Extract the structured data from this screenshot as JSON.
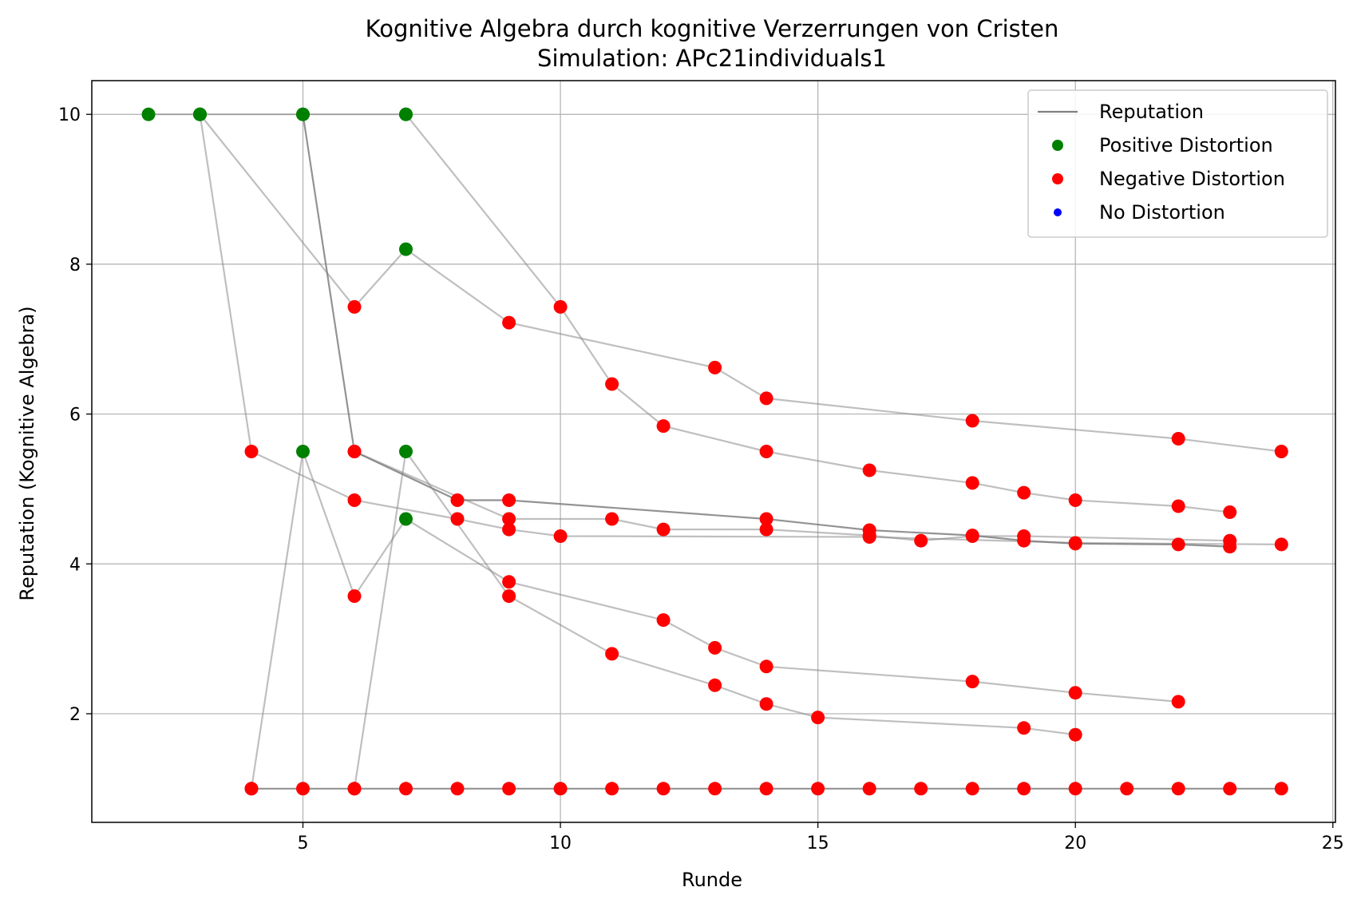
{
  "chart_data": {
    "type": "line",
    "title": "Kognitive Algebra durch kognitive Verzerrungen von Cristen",
    "subtitle": "Simulation: APc21individuals1",
    "xlabel": "Runde",
    "ylabel": "Reputation (Kognitive Algebra)",
    "xlim": [
      0.9,
      25.05
    ],
    "ylim": [
      0.55,
      10.45
    ],
    "xticks": [
      5,
      10,
      15,
      20,
      25
    ],
    "yticks": [
      2,
      4,
      6,
      8,
      10
    ],
    "grid": true,
    "legend_position": "top-right",
    "legend": [
      {
        "label": "Reputation",
        "kind": "line",
        "color": "#808080"
      },
      {
        "label": "Positive Distortion",
        "kind": "marker",
        "color": "#008000"
      },
      {
        "label": "Negative Distortion",
        "kind": "marker",
        "color": "#ff0000"
      },
      {
        "label": "No Distortion",
        "kind": "marker",
        "color": "#0000ff"
      }
    ],
    "colors": {
      "line": "#808080",
      "positive": "#008000",
      "negative": "#ff0000",
      "none": "#0000ff",
      "grid": "#b0b0b0"
    },
    "series": [
      {
        "points": [
          [
            2,
            10
          ],
          [
            3,
            10
          ],
          [
            5,
            10
          ],
          [
            7,
            10
          ]
        ],
        "dist": [
          "positive",
          "positive",
          "positive",
          "positive"
        ],
        "alpha": 0.5
      },
      {
        "points": [
          [
            3,
            10
          ],
          [
            6,
            7.43
          ],
          [
            7,
            8.2
          ],
          [
            9,
            7.22
          ],
          [
            13,
            6.62
          ],
          [
            14,
            6.21
          ],
          [
            18,
            5.91
          ],
          [
            22,
            5.67
          ],
          [
            24,
            5.5
          ]
        ],
        "dist": [
          "positive",
          "negative",
          "positive",
          "negative",
          "negative",
          "negative",
          "negative",
          "negative",
          "negative"
        ],
        "alpha": 0.5
      },
      {
        "points": [
          [
            7,
            10
          ],
          [
            10,
            7.43
          ],
          [
            11,
            6.4
          ],
          [
            12,
            5.84
          ],
          [
            14,
            5.5
          ],
          [
            16,
            5.25
          ],
          [
            18,
            5.08
          ],
          [
            19,
            4.95
          ],
          [
            20,
            4.85
          ],
          [
            22,
            4.77
          ],
          [
            23,
            4.69
          ]
        ],
        "dist": [
          "positive",
          "negative",
          "negative",
          "negative",
          "negative",
          "negative",
          "negative",
          "negative",
          "negative",
          "negative",
          "negative"
        ],
        "alpha": 0.5
      },
      {
        "points": [
          [
            5,
            10
          ],
          [
            6,
            5.5
          ],
          [
            8,
            4.85
          ],
          [
            9,
            4.85
          ],
          [
            14,
            4.6
          ],
          [
            16,
            4.45
          ],
          [
            18,
            4.38
          ],
          [
            19,
            4.31
          ],
          [
            20,
            4.27
          ],
          [
            22,
            4.26
          ],
          [
            23,
            4.23
          ]
        ],
        "dist": [
          "positive",
          "negative",
          "negative",
          "negative",
          "negative",
          "negative",
          "negative",
          "negative",
          "negative",
          "negative",
          "negative"
        ],
        "alpha": 0.85
      },
      {
        "points": [
          [
            3,
            10
          ],
          [
            4,
            5.5
          ],
          [
            6,
            4.85
          ],
          [
            8,
            4.6
          ],
          [
            9,
            4.46
          ],
          [
            10,
            4.37
          ],
          [
            16,
            4.36
          ],
          [
            20,
            4.28
          ],
          [
            24,
            4.26
          ]
        ],
        "dist": [
          "positive",
          "negative",
          "negative",
          "negative",
          "negative",
          "negative",
          "negative",
          "negative",
          "negative"
        ],
        "alpha": 0.5
      },
      {
        "points": [
          [
            6,
            5.5
          ],
          [
            9,
            4.6
          ],
          [
            11,
            4.6
          ],
          [
            12,
            4.46
          ],
          [
            14,
            4.46
          ],
          [
            16,
            4.38
          ],
          [
            17,
            4.31
          ],
          [
            18,
            4.37
          ],
          [
            19,
            4.37
          ],
          [
            23,
            4.31
          ]
        ],
        "dist": [
          "negative",
          "negative",
          "negative",
          "negative",
          "negative",
          "negative",
          "negative",
          "negative",
          "negative",
          "negative"
        ],
        "alpha": 0.5
      },
      {
        "points": [
          [
            4,
            1
          ],
          [
            5,
            5.5
          ],
          [
            6,
            3.57
          ],
          [
            7,
            4.6
          ],
          [
            9,
            3.76
          ],
          [
            12,
            3.25
          ],
          [
            13,
            2.88
          ],
          [
            14,
            2.63
          ],
          [
            18,
            2.43
          ],
          [
            20,
            2.28
          ],
          [
            22,
            2.16
          ]
        ],
        "dist": [
          "negative",
          "positive",
          "negative",
          "positive",
          "negative",
          "negative",
          "negative",
          "negative",
          "negative",
          "negative",
          "negative"
        ],
        "alpha": 0.5
      },
      {
        "points": [
          [
            6,
            1
          ],
          [
            7,
            5.5
          ],
          [
            9,
            3.57
          ],
          [
            11,
            2.8
          ],
          [
            13,
            2.38
          ],
          [
            14,
            2.13
          ],
          [
            15,
            1.95
          ],
          [
            19,
            1.81
          ],
          [
            20,
            1.72
          ]
        ],
        "dist": [
          "negative",
          "positive",
          "negative",
          "negative",
          "negative",
          "negative",
          "negative",
          "negative",
          "negative"
        ],
        "alpha": 0.5
      },
      {
        "points": [
          [
            4,
            1
          ],
          [
            5,
            1
          ],
          [
            6,
            1
          ],
          [
            7,
            1
          ],
          [
            8,
            1
          ],
          [
            9,
            1
          ],
          [
            10,
            1
          ],
          [
            11,
            1
          ],
          [
            12,
            1
          ],
          [
            13,
            1
          ],
          [
            14,
            1
          ],
          [
            15,
            1
          ],
          [
            16,
            1
          ],
          [
            17,
            1
          ],
          [
            18,
            1
          ],
          [
            19,
            1
          ],
          [
            20,
            1
          ],
          [
            21,
            1
          ],
          [
            22,
            1
          ],
          [
            23,
            1
          ],
          [
            24,
            1
          ]
        ],
        "dist": [
          "negative",
          "negative",
          "negative",
          "negative",
          "negative",
          "negative",
          "negative",
          "negative",
          "negative",
          "negative",
          "negative",
          "negative",
          "negative",
          "negative",
          "negative",
          "negative",
          "negative",
          "negative",
          "negative",
          "negative",
          "negative"
        ],
        "alpha": 0.85
      }
    ]
  }
}
